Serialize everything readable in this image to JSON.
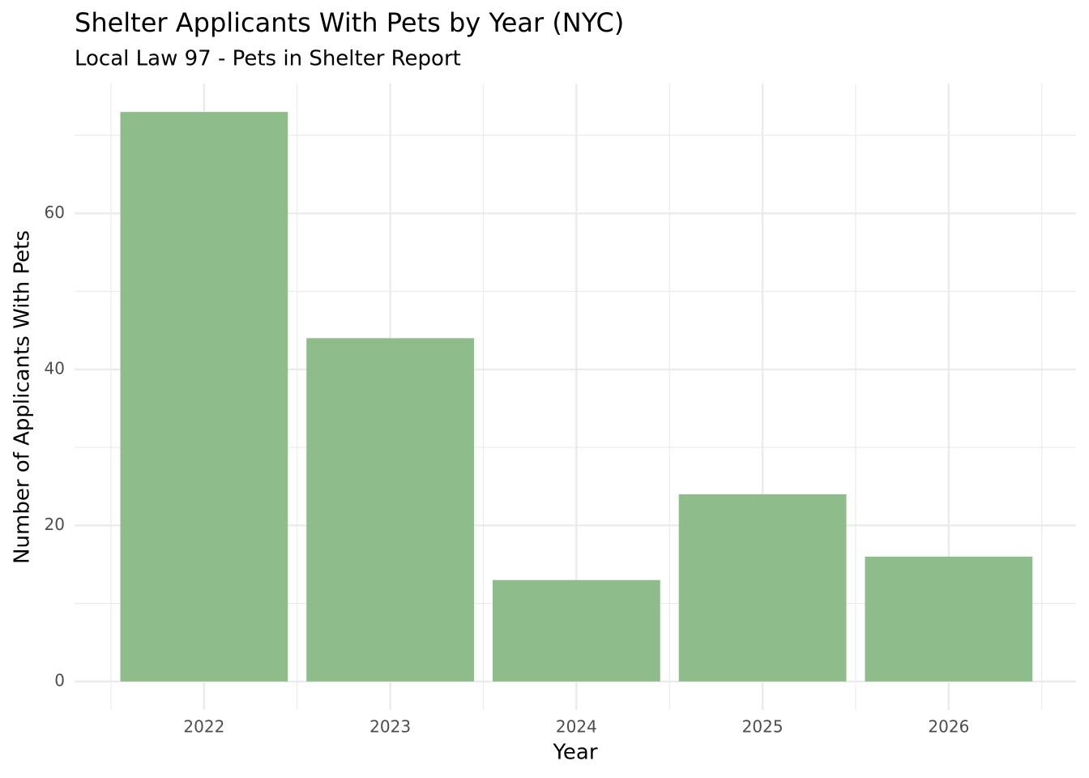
{
  "chart_data": {
    "type": "bar",
    "title": "Shelter Applicants With Pets by Year (NYC)",
    "subtitle": "Local Law 97 - Pets in Shelter Report",
    "x_label": "Year",
    "y_label": "Number of Applicants With Pets",
    "categories": [
      "2022",
      "2023",
      "2024",
      "2025",
      "2026"
    ],
    "values": [
      73,
      44,
      13,
      24,
      16
    ],
    "color": "#8fbc8b",
    "ylim": [
      -3.65,
      76.65
    ],
    "yticks": [
      0,
      20,
      40,
      60
    ],
    "minor_yticks": [
      10,
      30,
      50,
      70
    ],
    "grid": true
  }
}
